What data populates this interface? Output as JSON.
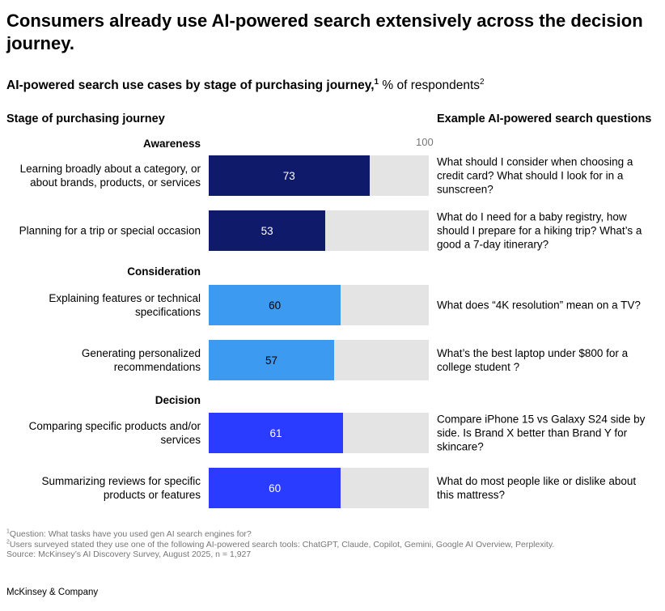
{
  "header": {
    "title": "Consumers already use AI-powered search extensively across the decision journey.",
    "subtitle_bold": "AI-powered search use cases by stage of purchasing journey,",
    "subtitle_sup1": "1",
    "subtitle_rest": " % of respondents",
    "subtitle_sup2": "2"
  },
  "columns": {
    "left": "Stage of purchasing journey",
    "right": "Example AI-powered search questions"
  },
  "chart_data": {
    "type": "bar",
    "orientation": "horizontal",
    "axis_max_label": "100",
    "xlim": [
      0,
      100
    ],
    "stages": [
      {
        "name": "Awareness",
        "color": "#0f1a6b",
        "rows": [
          {
            "label": "Learning broadly about a category, or about brands, products, or services",
            "value": 73,
            "value_label": "73",
            "value_color": "#ffffff",
            "question": "What should I consider when choosing a credit card? What should I look for in a sunscreen?"
          },
          {
            "label": "Planning for a trip or special occasion",
            "value": 53,
            "value_label": "53",
            "value_color": "#ffffff",
            "question": "What do I need for a baby registry, how should I prepare for a hiking trip? What’s a good a 7-day itinerary?"
          }
        ]
      },
      {
        "name": "Consideration",
        "color": "#3c9bf0",
        "rows": [
          {
            "label": "Explaining features or technical specifications",
            "value": 60,
            "value_label": "60",
            "value_color": "#000000",
            "question": "What does “4K resolution” mean on a TV?"
          },
          {
            "label": "Generating personalized recommendations",
            "value": 57,
            "value_label": "57",
            "value_color": "#000000",
            "question": "What’s the best laptop under $800 for a college student ?"
          }
        ]
      },
      {
        "name": "Decision",
        "color": "#2a3cff",
        "rows": [
          {
            "label": "Comparing specific products and/or services",
            "value": 61,
            "value_label": "61",
            "value_color": "#ffffff",
            "question": "Compare iPhone 15 vs Galaxy S24 side by side. Is Brand X better than Brand Y for skincare?"
          },
          {
            "label": "Summarizing reviews for specific products or features",
            "value": 60,
            "value_label": "60",
            "value_color": "#ffffff",
            "question": "What do most people like or dislike about this mattress?"
          }
        ]
      }
    ]
  },
  "footnotes": {
    "n1_sup": "1",
    "n1": "Question: What tasks have you used gen AI search engines for?",
    "n2_sup": "2",
    "n2": "Users surveyed stated they use one of the following AI-powered search tools: ChatGPT, Claude, Copilot, Gemini, Google AI Overview, Perplexity.",
    "source": " Source: McKinsey’s AI Discovery Survey, August 2025, n = 1,927"
  },
  "brand": "McKinsey & Company"
}
